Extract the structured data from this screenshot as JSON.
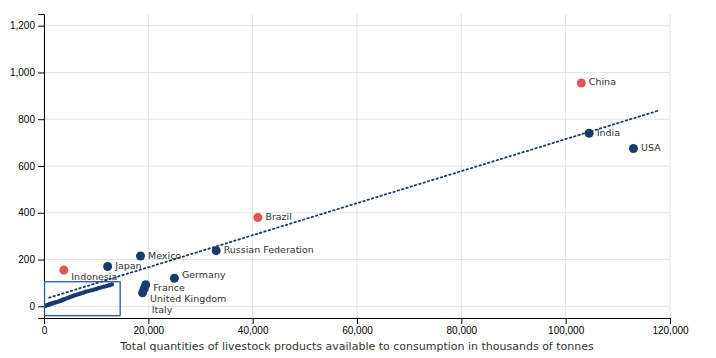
{
  "chart_data": {
    "type": "scatter",
    "xlabel": "Total quantities of livestock products available to consumption in thousands of tonnes",
    "xlim": [
      0,
      120000
    ],
    "ylim": [
      -50,
      1250
    ],
    "xticks": [
      0,
      {
        "value": 20000,
        "label": "20,000"
      },
      {
        "value": 40000,
        "label": "40,000"
      },
      {
        "value": 60000,
        "label": "60,000"
      },
      {
        "value": 80000,
        "label": "80,000"
      },
      {
        "value": 100000,
        "label": "100,000"
      },
      {
        "value": 120000,
        "label": "120,000"
      }
    ],
    "yticks": [
      0,
      200,
      400,
      600,
      800,
      {
        "value": 1000,
        "label": "1,000"
      },
      {
        "value": 1200,
        "label": "1,200"
      }
    ],
    "grid": true,
    "series": [
      {
        "type": "line",
        "line_style": "dotted",
        "color": "#1a3a6b",
        "x": [
          1000,
          118000
        ],
        "values": [
          36.85,
          838.3
        ]
      },
      {
        "type": "scatter",
        "color": "#1a3a6b",
        "x": [
          300,
          500,
          700,
          900,
          1100,
          1300,
          1500,
          1800,
          2100,
          2400,
          2700,
          3000,
          3300,
          3600,
          3900,
          4200,
          4600,
          5000,
          5400,
          5800,
          6200,
          6600,
          7000,
          7500,
          8000,
          8500,
          9000,
          9500,
          10000,
          10500,
          11000,
          11500,
          12000,
          12500,
          13000
        ],
        "values": [
          2,
          4,
          6,
          7,
          9,
          10,
          12,
          14,
          16,
          18,
          20,
          22,
          25,
          28,
          30,
          33,
          36,
          40,
          43,
          46,
          49,
          52,
          55,
          58,
          62,
          65,
          68,
          71,
          74,
          78,
          81,
          84,
          87,
          90,
          93
        ]
      },
      {
        "type": "scatter",
        "x": [
          3800,
          12200,
          18500,
          25000,
          19500,
          19200,
          18900,
          33000,
          41000,
          103000,
          104500,
          113000
        ],
        "values": [
          155,
          170,
          215,
          120,
          92,
          75,
          58,
          238,
          380,
          955,
          740,
          675
        ],
        "labels": [
          "Indonesia",
          "Japan",
          "Mexico",
          "Germany",
          "France",
          "Italy",
          "United Kingdom",
          "Russian Federation",
          "Brazil",
          "China",
          "India",
          "USA"
        ],
        "colors": [
          "#e05555",
          "#1a3a6b",
          "#1a3a6b",
          "#1a3a6b",
          "#1a3a6b",
          "#1a3a6b",
          "#1a3a6b",
          "#1a3a6b",
          "#e05555",
          "#e05555",
          "#1a3a6b",
          "#1a3a6b"
        ]
      }
    ],
    "box": {
      "x": 100,
      "y": -40,
      "width": 14500,
      "height": 145,
      "color": "#2255aa"
    }
  }
}
